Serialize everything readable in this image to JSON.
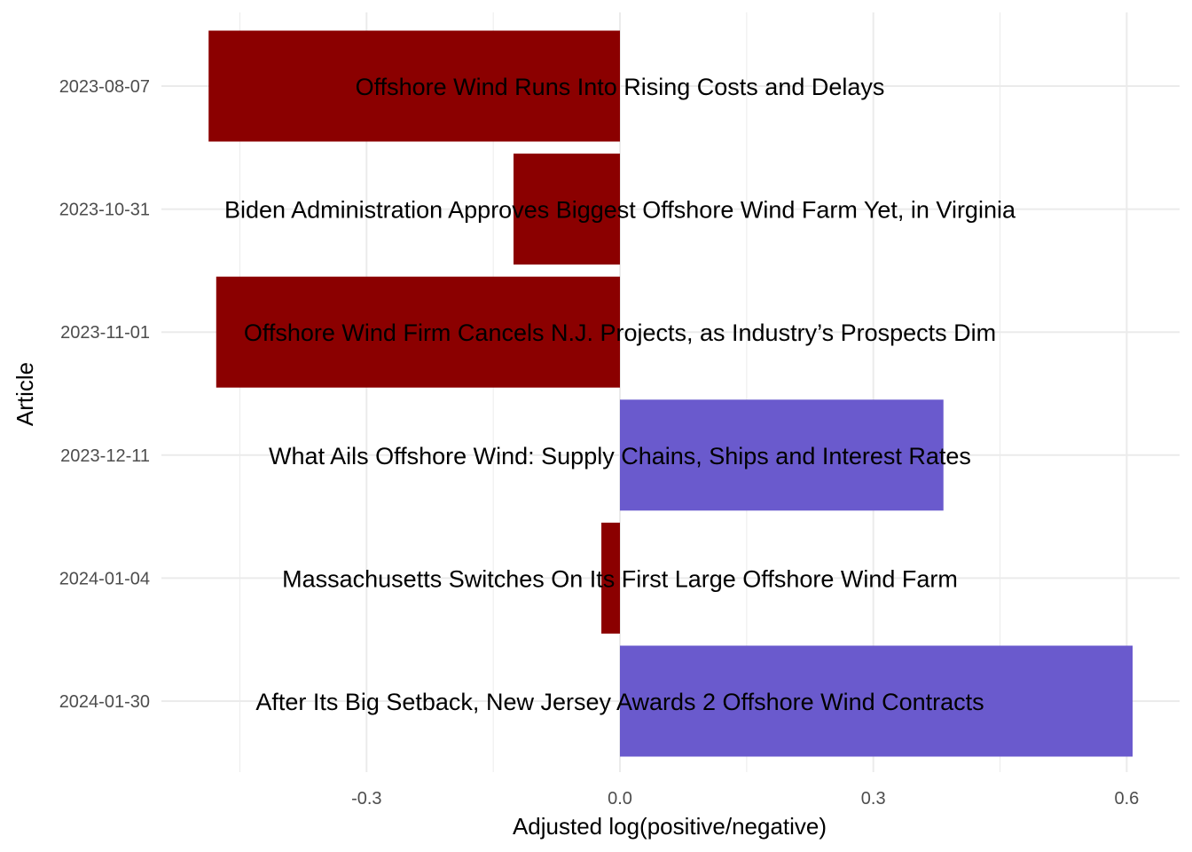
{
  "chart_data": {
    "type": "bar",
    "orientation": "horizontal",
    "xlabel": "Adjusted log(positive/negative)",
    "ylabel": "Article",
    "xlim": [
      -0.455,
      0.64
    ],
    "x_ticks": [
      -0.3,
      0.0,
      0.3,
      0.6
    ],
    "x_tick_labels": [
      "-0.3",
      "0.0",
      "0.3",
      "0.6"
    ],
    "grid": true,
    "colors": {
      "positive": "#6a5acd",
      "negative": "#8b0000",
      "grid": "#ebebeb"
    },
    "bars": [
      {
        "date": "2023-08-07",
        "title": "Offshore Wind Runs Into Rising Costs and Delays",
        "value": -0.487
      },
      {
        "date": "2023-10-31",
        "title": "Biden Administration Approves Biggest Offshore Wind Farm Yet, in Virginia",
        "value": -0.126
      },
      {
        "date": "2023-11-01",
        "title": "Offshore Wind Firm Cancels N.J. Projects, as Industry’s Prospects Dim",
        "value": -0.478
      },
      {
        "date": "2023-12-11",
        "title": "What Ails Offshore Wind: Supply Chains, Ships and Interest Rates",
        "value": 0.383
      },
      {
        "date": "2024-01-04",
        "title": "Massachusetts Switches On Its First Large Offshore Wind Farm",
        "value": -0.022
      },
      {
        "date": "2024-01-30",
        "title": "After Its Big Setback, New Jersey Awards 2 Offshore Wind Contracts",
        "value": 0.607
      }
    ]
  }
}
